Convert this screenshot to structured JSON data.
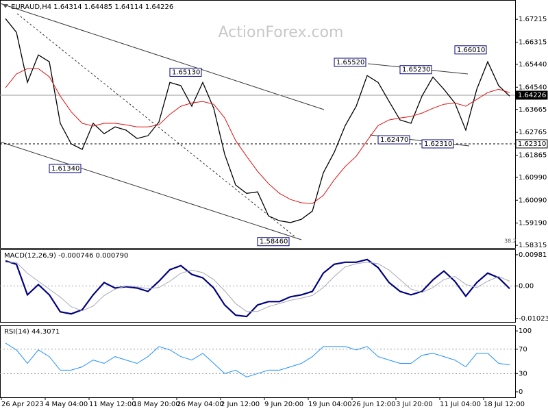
{
  "chart_data": [
    {
      "type": "line",
      "title": "EURAUD,H4  1.64314 1.64485 1.64114 1.64226",
      "watermark": "ActionForex.com",
      "note": "38.2",
      "xlim": [
        -0.5,
        46.5
      ],
      "ylim": [
        1.5821,
        1.6792
      ],
      "yticks": [
        1.67215,
        1.66315,
        {
          "value": 1.6544,
          "label": "1.65440"
        },
        {
          "value": 1.6454,
          "label": "1.64540"
        },
        1.63665,
        1.62765,
        1.61865,
        {
          "value": 1.6099,
          "label": "1.60990"
        },
        {
          "value": 1.6009,
          "label": "1.60090"
        },
        {
          "value": 1.5919,
          "label": "1.59190"
        },
        1.58315
      ],
      "series": [
        {
          "name": "EURAUD",
          "color": "#000000",
          "values": [
            1.6724,
            1.667,
            1.6473,
            1.6581,
            1.6554,
            1.6312,
            1.6231,
            1.6209,
            1.6312,
            1.6271,
            1.6298,
            1.6285,
            1.6252,
            1.6263,
            1.6317,
            1.6473,
            1.646,
            1.6379,
            1.6473,
            1.6371,
            1.619,
            1.6069,
            1.6036,
            1.6042,
            1.5947,
            1.5928,
            1.5921,
            1.5934,
            1.5966,
            1.6117,
            1.6198,
            1.6303,
            1.6379,
            1.65,
            1.6473,
            1.6398,
            1.6325,
            1.6312,
            1.6419,
            1.6494,
            1.6446,
            1.6392,
            1.6285,
            1.6446,
            1.6554,
            1.646,
            1.6419
          ]
        },
        {
          "name": "MA",
          "color": "#e01010",
          "values": [
            1.6452,
            1.6506,
            1.6527,
            1.6527,
            1.6495,
            1.6419,
            1.6357,
            1.6312,
            1.6301,
            1.6312,
            1.6312,
            1.6306,
            1.6298,
            1.6298,
            1.6306,
            1.6347,
            1.6379,
            1.6392,
            1.6398,
            1.6387,
            1.6333,
            1.6244,
            1.6182,
            1.6123,
            1.6074,
            1.6036,
            1.6012,
            1.5999,
            1.5996,
            1.6028,
            1.609,
            1.6142,
            1.6182,
            1.6244,
            1.6303,
            1.6325,
            1.6333,
            1.6339,
            1.6352,
            1.6371,
            1.6387,
            1.6392,
            1.6379,
            1.6406,
            1.6433,
            1.6446,
            1.6433
          ]
        }
      ],
      "annotations": [
        {
          "label": "1.61340",
          "value": 1.6134,
          "x": 4
        },
        {
          "label": "1.65130",
          "value": 1.6513,
          "x": 15
        },
        {
          "label": "1.58460",
          "value": 1.5846,
          "x": 23
        },
        {
          "label": "1.65520",
          "value": 1.6552,
          "x": 30
        },
        {
          "label": "1.62470",
          "value": 1.6247,
          "x": 34
        },
        {
          "label": "1.65230",
          "value": 1.6523,
          "x": 36
        },
        {
          "label": "1.62310",
          "value": 1.6231,
          "x": 38
        },
        {
          "label": "1.66010",
          "value": 1.6601,
          "x": 41
        }
      ],
      "levels": [
        {
          "label": "1.64226",
          "value": 1.64226,
          "style": "solid"
        },
        {
          "label": "1.62310",
          "value": 1.6231,
          "style": "dashed"
        }
      ]
    },
    {
      "type": "line",
      "title": "MACD(12,26,9) -0.000746 0.000790",
      "xlim": [
        -0.5,
        46.5
      ],
      "ylim": [
        -0.0113,
        0.0113
      ],
      "yticks": [
        0.00981,
        {
          "value": 0,
          "label": "0.00"
        },
        -0.010235
      ],
      "grid": "dashed",
      "series": [
        {
          "name": "MACD",
          "color": "#000080",
          "values": [
            0.00789,
            0.00683,
            -0.00277,
            0.00043,
            -0.00277,
            -0.00811,
            -0.00875,
            -0.00747,
            -0.00277,
            0.00107,
            -0.00064,
            -0.00021,
            -0.00064,
            -0.00171,
            0.00149,
            0.00512,
            0.0064,
            0.00363,
            0.00256,
            -0.00064,
            -0.00597,
            -0.00917,
            -0.0096,
            -0.00597,
            -0.00491,
            -0.00491,
            -0.00341,
            -0.00277,
            -0.00171,
            0.00405,
            0.00683,
            0.00747,
            0.00747,
            0.00832,
            0.00576,
            0.00107,
            -0.00171,
            -0.00277,
            -0.00171,
            0.00192,
            0.00469,
            0.00149,
            -0.0032,
            0.00107,
            0.00405,
            0.00256,
            -0.00085
          ]
        },
        {
          "name": "Signal",
          "color": "#a8a8b8",
          "values": [
            0.0075,
            0.0074,
            0.004,
            0.0015,
            -0.001,
            -0.0035,
            -0.0065,
            -0.0078,
            -0.0063,
            -0.003,
            -0.001,
            0,
            -0.0003,
            -0.0008,
            -0.0005,
            0.0015,
            0.004,
            0.005,
            0.0042,
            0.002,
            -0.0015,
            -0.0055,
            -0.008,
            -0.008,
            -0.0065,
            -0.0055,
            -0.0045,
            -0.0038,
            -0.003,
            -0.0005,
            0.003,
            0.006,
            0.007,
            0.0075,
            0.007,
            0.005,
            0.002,
            -0.001,
            -0.002,
            -0.0005,
            0.002,
            0.003,
            0.0005,
            -0.0005,
            0.0015,
            0.003,
            0.0015
          ]
        }
      ]
    },
    {
      "type": "line",
      "title": "RSI(14) 44.3071",
      "xlim": [
        -0.5,
        46.5
      ],
      "ylim": [
        -9,
        108
      ],
      "yticks": [
        100,
        70,
        30,
        0
      ],
      "grid": "dashed",
      "xticks": [
        {
          "value": 0,
          "label": "26 Apr 2023"
        },
        {
          "value": 4,
          "label": "4 May 04:00"
        },
        {
          "value": 8,
          "label": "11 May 12:00"
        },
        {
          "value": 12,
          "label": "18 May 20:00"
        },
        {
          "value": 16,
          "label": "26 May 04:00"
        },
        {
          "value": 20,
          "label": "2 Jun 12:00"
        },
        {
          "value": 24,
          "label": "9 Jun 20:00"
        },
        {
          "value": 28,
          "label": "19 Jun 04:00"
        },
        {
          "value": 32,
          "label": "26 Jun 12:00"
        },
        {
          "value": 36,
          "label": "3 Jul 20:00"
        },
        {
          "value": 40,
          "label": "11 Jul 04:00"
        },
        {
          "value": 44,
          "label": "18 Jul 12:00"
        }
      ],
      "series": [
        {
          "name": "RSI",
          "color": "#1e90ff",
          "values": [
            80.0,
            68.9,
            46.7,
            68.9,
            57.8,
            35.6,
            35.6,
            41.1,
            52.2,
            46.7,
            57.8,
            52.2,
            46.7,
            57.8,
            74.4,
            68.9,
            57.8,
            52.2,
            63.3,
            46.7,
            30.0,
            35.6,
            24.4,
            30.0,
            35.6,
            35.6,
            41.1,
            46.7,
            57.8,
            74.4,
            74.4,
            74.4,
            68.9,
            74.4,
            57.8,
            52.2,
            46.7,
            46.7,
            60.0,
            63.3,
            57.8,
            52.2,
            41.1,
            63.3,
            63.3,
            46.7,
            44.3
          ]
        }
      ]
    }
  ]
}
